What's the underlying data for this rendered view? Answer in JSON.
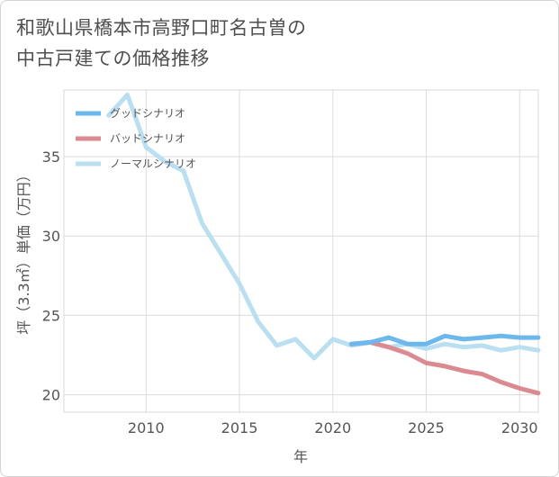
{
  "chart_data": {
    "type": "line",
    "title": "和歌山県橋本市高野口町名古曽の\n中古戸建ての価格推移",
    "xlabel": "年",
    "ylabel": "坪（3.3㎡）単価（万円）",
    "xlim": [
      2005.6,
      2031
    ],
    "ylim": [
      18.9,
      39.2
    ],
    "xticks": [
      2010,
      2015,
      2020,
      2025,
      2030
    ],
    "yticks": [
      20,
      25,
      30,
      35
    ],
    "grid": true,
    "legend_position": "top-left",
    "series": [
      {
        "name": "グッドシナリオ",
        "color": "#6cb8ec",
        "x": [
          2021,
          2022,
          2023,
          2024,
          2025,
          2026,
          2027,
          2028,
          2029,
          2030,
          2031
        ],
        "y": [
          23.2,
          23.3,
          23.6,
          23.2,
          23.2,
          23.7,
          23.5,
          23.6,
          23.7,
          23.6,
          23.6
        ]
      },
      {
        "name": "バッドシナリオ",
        "color": "#dc8a92",
        "x": [
          2021,
          2022,
          2023,
          2024,
          2025,
          2026,
          2027,
          2028,
          2029,
          2030,
          2031
        ],
        "y": [
          23.2,
          23.3,
          23.0,
          22.6,
          22.0,
          21.8,
          21.5,
          21.3,
          20.8,
          20.4,
          20.1
        ]
      },
      {
        "name": "ノーマルシナリオ",
        "color": "#b9dff1",
        "x": [
          2008,
          2009,
          2010,
          2011,
          2012,
          2013,
          2014,
          2015,
          2016,
          2017,
          2018,
          2019,
          2020,
          2021,
          2022,
          2023,
          2024,
          2025,
          2026,
          2027,
          2028,
          2029,
          2030,
          2031
        ],
        "y": [
          37.6,
          38.9,
          35.6,
          34.7,
          34.1,
          30.8,
          28.9,
          27.0,
          24.6,
          23.1,
          23.5,
          22.3,
          23.5,
          23.1,
          23.3,
          23.0,
          23.2,
          22.9,
          23.2,
          23.0,
          23.1,
          22.8,
          23.0,
          22.8
        ]
      }
    ]
  }
}
